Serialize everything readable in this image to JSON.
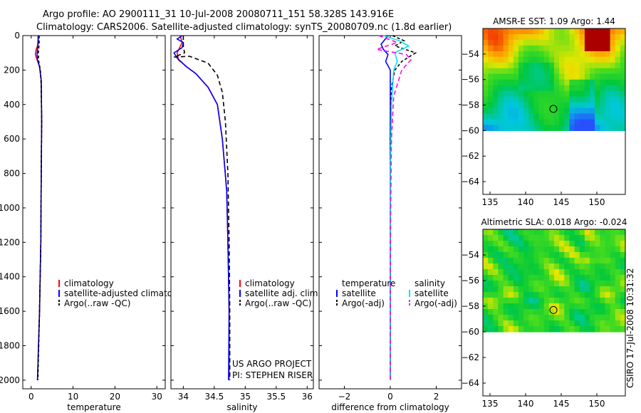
{
  "figure": {
    "title_line1": "Argo profile: AO 2900111_31 10-Jul-2008 20080711_151 58.328S 143.916E",
    "title_line2": "Climatology: CARS2006. Satellite-adjusted climatology: synTS_20080709.nc (1.8d earlier)",
    "side_label": "CSIRO 17-Jul-2008 10:31:32",
    "credit_line1": "US ARGO PROJECT",
    "credit_line2": "PI: STEPHEN RISER"
  },
  "colors": {
    "climatology": "#ff0000",
    "satellite": "#0000ff",
    "argo": "#000000",
    "salinity_sat": "#00e5ee",
    "salinity_argo": "#ff00ff",
    "map_land_none": "#ffffff"
  },
  "chart_data": [
    {
      "type": "line",
      "id": "temperature",
      "xlabel": "temperature",
      "ylabel": "",
      "xlim": [
        -2,
        32
      ],
      "ylim": [
        2050,
        0
      ],
      "xticks": [
        0,
        10,
        20,
        30
      ],
      "yticks": [
        0,
        200,
        400,
        600,
        800,
        1000,
        1200,
        1400,
        1600,
        1800,
        2000
      ],
      "legend": [
        "climatology",
        "satellite-adjusted climatolog",
        "Argo(..raw -QC)"
      ],
      "series": [
        {
          "name": "climatology",
          "color": "#ff0000",
          "dash": "",
          "points": [
            [
              1.6,
              0
            ],
            [
              1.8,
              40
            ],
            [
              1.2,
              80
            ],
            [
              1.0,
              110
            ],
            [
              1.4,
              140
            ],
            [
              2.0,
              180
            ],
            [
              2.4,
              260
            ],
            [
              2.5,
              500
            ],
            [
              2.4,
              800
            ],
            [
              2.3,
              1200
            ],
            [
              2.0,
              1600
            ],
            [
              1.5,
              2000
            ]
          ]
        },
        {
          "name": "satellite",
          "color": "#0000ff",
          "dash": "",
          "points": [
            [
              1.7,
              0
            ],
            [
              1.6,
              40
            ],
            [
              1.5,
              80
            ],
            [
              1.4,
              110
            ],
            [
              1.5,
              140
            ],
            [
              2.0,
              180
            ],
            [
              2.4,
              260
            ],
            [
              2.5,
              500
            ],
            [
              2.4,
              800
            ],
            [
              2.3,
              1200
            ],
            [
              2.0,
              1600
            ],
            [
              1.5,
              2000
            ]
          ]
        },
        {
          "name": "argo",
          "color": "#000000",
          "dash": "4,3",
          "points": [
            [
              1.9,
              0
            ],
            [
              1.9,
              50
            ],
            [
              1.7,
              100
            ],
            [
              1.8,
              150
            ],
            [
              2.2,
              200
            ],
            [
              2.4,
              300
            ],
            [
              2.5,
              500
            ],
            [
              2.4,
              800
            ],
            [
              2.3,
              1200
            ],
            [
              2.0,
              1600
            ],
            [
              1.6,
              2000
            ]
          ]
        }
      ]
    },
    {
      "type": "line",
      "id": "salinity",
      "xlabel": "salinity",
      "ylabel": "",
      "xlim": [
        33.8,
        36.1
      ],
      "ylim": [
        2050,
        0
      ],
      "xticks": [
        34,
        34.5,
        35,
        35.5,
        36
      ],
      "xticklabels": [
        "34",
        "34.5",
        "35",
        "35.5",
        "36"
      ],
      "legend": [
        "climatology",
        "satellite adj. clim.",
        "Argo(..raw -QC)"
      ],
      "series": [
        {
          "name": "climatology",
          "color": "#ff0000",
          "dash": "",
          "points": [
            [
              33.95,
              0
            ],
            [
              33.98,
              40
            ],
            [
              33.9,
              100
            ],
            [
              33.92,
              140
            ],
            [
              34.05,
              180
            ],
            [
              34.2,
              220
            ],
            [
              34.4,
              300
            ],
            [
              34.55,
              400
            ],
            [
              34.63,
              600
            ],
            [
              34.7,
              900
            ],
            [
              34.72,
              1200
            ],
            [
              34.74,
              1600
            ],
            [
              34.74,
              2000
            ]
          ]
        },
        {
          "name": "satellite",
          "color": "#0000ff",
          "dash": "",
          "points": [
            [
              33.98,
              0
            ],
            [
              33.9,
              20
            ],
            [
              34.0,
              40
            ],
            [
              33.98,
              70
            ],
            [
              33.85,
              100
            ],
            [
              33.9,
              130
            ],
            [
              34.05,
              180
            ],
            [
              34.2,
              220
            ],
            [
              34.4,
              300
            ],
            [
              34.55,
              400
            ],
            [
              34.63,
              600
            ],
            [
              34.7,
              900
            ],
            [
              34.72,
              1200
            ],
            [
              34.74,
              1600
            ],
            [
              34.73,
              2000
            ]
          ]
        },
        {
          "name": "argo",
          "color": "#000000",
          "dash": "6,4",
          "points": [
            [
              34.0,
              0
            ],
            [
              34.0,
              60
            ],
            [
              34.02,
              100
            ],
            [
              33.85,
              125
            ],
            [
              34.1,
              120
            ],
            [
              34.4,
              160
            ],
            [
              34.55,
              230
            ],
            [
              34.63,
              330
            ],
            [
              34.68,
              500
            ],
            [
              34.72,
              800
            ],
            [
              34.74,
              1200
            ],
            [
              34.75,
              1600
            ],
            [
              34.75,
              2000
            ]
          ]
        }
      ]
    },
    {
      "type": "line",
      "id": "difference",
      "xlabel": "difference from climatology",
      "ylabel": "",
      "xlim": [
        -3.1,
        3.1
      ],
      "ylim": [
        2050,
        0
      ],
      "xticks": [
        -2,
        0,
        2
      ],
      "xticklabels": [
        "−2",
        "0",
        "2"
      ],
      "legend_temperature": [
        "temperature",
        "satellite",
        "Argo(-adj)"
      ],
      "legend_salinity": [
        "salinity",
        "satellite",
        "Argo(-adj)"
      ],
      "series": [
        {
          "name": "temperature satellite",
          "color": "#0000ff",
          "dash": "",
          "points": [
            [
              -0.1,
              0
            ],
            [
              -0.4,
              50
            ],
            [
              -0.3,
              80
            ],
            [
              -0.1,
              110
            ],
            [
              -0.2,
              150
            ],
            [
              0.0,
              200
            ],
            [
              0.0,
              600
            ],
            [
              0.0,
              1200
            ],
            [
              0.0,
              2000
            ]
          ]
        },
        {
          "name": "temperature argo",
          "color": "#000000",
          "dash": "4,3",
          "points": [
            [
              0.1,
              0
            ],
            [
              0.6,
              30
            ],
            [
              0.2,
              60
            ],
            [
              1.1,
              100
            ],
            [
              0.5,
              150
            ],
            [
              0.2,
              200
            ],
            [
              0.05,
              300
            ],
            [
              0.0,
              600
            ],
            [
              0.0,
              1200
            ],
            [
              0.0,
              2000
            ]
          ]
        },
        {
          "name": "salinity satellite",
          "color": "#00e5ee",
          "dash": "",
          "points": [
            [
              -0.3,
              0
            ],
            [
              0.4,
              30
            ],
            [
              0.8,
              60
            ],
            [
              0.2,
              100
            ],
            [
              0.3,
              150
            ],
            [
              0.15,
              200
            ],
            [
              0.05,
              400
            ],
            [
              0.0,
              800
            ],
            [
              0.0,
              1200
            ],
            [
              0.0,
              2000
            ]
          ]
        },
        {
          "name": "salinity argo",
          "color": "#ff00ff",
          "dash": "6,4",
          "points": [
            [
              -0.5,
              0
            ],
            [
              0.3,
              40
            ],
            [
              -0.6,
              80
            ],
            [
              0.7,
              110
            ],
            [
              0.9,
              140
            ],
            [
              0.5,
              200
            ],
            [
              0.15,
              350
            ],
            [
              0.05,
              600
            ],
            [
              0.02,
              1000
            ],
            [
              0.0,
              1500
            ],
            [
              0.0,
              2000
            ]
          ]
        }
      ]
    },
    {
      "type": "heatmap",
      "id": "sst-map",
      "title": "AMSR-E SST: 1.09 Argo: 1.44",
      "xlim": [
        134,
        154
      ],
      "ylim": [
        -65,
        -52
      ],
      "xticks": [
        135,
        140,
        145,
        150
      ],
      "yticks": [
        -54,
        -56,
        -58,
        -60,
        -62,
        -64
      ],
      "yticklabels": [
        "−54",
        "−56",
        "−58",
        "−60",
        "−62",
        "−64"
      ],
      "data_lat_min": -60,
      "marker": [
        143.9,
        -58.3
      ]
    },
    {
      "type": "heatmap",
      "id": "sla-map",
      "title": "Altimetric SLA: 0.018 Argo: -0.024",
      "xlim": [
        134,
        154
      ],
      "ylim": [
        -65,
        -52
      ],
      "xticks": [
        135,
        140,
        145,
        150
      ],
      "yticks": [
        -54,
        -56,
        -58,
        -60,
        -62,
        -64
      ],
      "yticklabels": [
        "−54",
        "−56",
        "−58",
        "−60",
        "−62",
        "−64"
      ],
      "data_lat_min": -60,
      "marker": [
        143.9,
        -58.3
      ]
    }
  ]
}
